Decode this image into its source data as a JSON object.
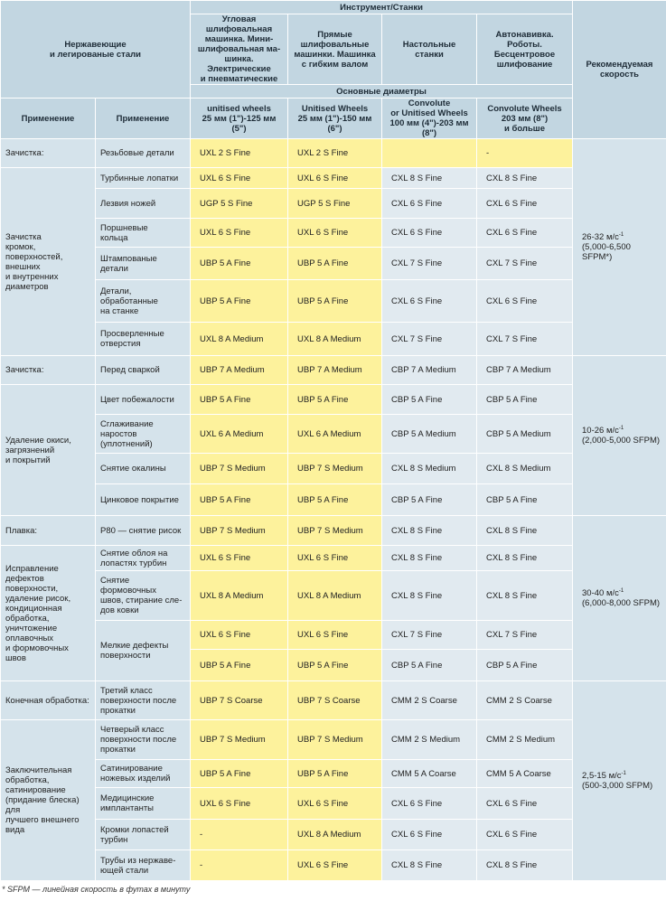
{
  "header": {
    "material": "Нержавеющие\nи легированые стали",
    "tools_title": "Инструмент/Станки",
    "tools": [
      "Угловая шлифовальная\nмашинка. Мини-\nшлифовальная ма-\nшинка. Электрические\nи пневматические",
      "Прямые\nшлифовальные\nмашинки. Машинка\nс гибким валом",
      "Настольные\nстанки",
      "Автонавивка.\nРоботы. Бесцентровое\nшлифование"
    ],
    "diameters_title": "Основные диаметры",
    "diameters": [
      "unitised wheels\n25 мм (1\")-125 мм (5\")",
      "Unitised Wheels\n25 мм (1\")-150 мм (6\")",
      "Convolute\nor Unitised Wheels\n100 мм (4\")-203 мм (8\")",
      "Convolute Wheels\n203 мм (8\")\nи больше"
    ],
    "application_1": "Применение",
    "application_2": "Применение",
    "speed": "Рекомендуемая\nскорость"
  },
  "speed_groups": [
    {
      "speed": {
        "value": "26-32 м/с",
        "sup": "-1",
        "sfpm": "(5,000-6,500 SFPM*)"
      },
      "sections": [
        {
          "application": "Зачистка:",
          "items": [
            {
              "detail": "Резьбовые детали",
              "rows": [
                [
                  "UXL 2 S Fine",
                  "UXL 2 S Fine",
                  null,
                  "-"
                ]
              ]
            }
          ]
        },
        {
          "application": "Зачистка\nкромок,\nповерхностей,\nвнешних\nи внутренних\nдиаметров",
          "items": [
            {
              "detail": "Турбинные лопатки",
              "rows": [
                [
                  "UXL 6 S Fine",
                  "UXL 6 S Fine",
                  "CXL 8 S Fine",
                  "CXL 8 S Fine"
                ]
              ]
            },
            {
              "detail": "Лезвия ножей",
              "rows": [
                [
                  "UGP 5 S Fine",
                  "UGP 5 S Fine",
                  "CXL 6 S Fine",
                  "CXL 6 S Fine"
                ]
              ]
            },
            {
              "detail": "Поршневые\nкольца",
              "rows": [
                [
                  "UXL 6 S Fine",
                  "UXL 6 S Fine",
                  "CXL 6 S Fine",
                  "CXL 6 S Fine"
                ]
              ]
            },
            {
              "detail": "Штампованые\nдетали",
              "rows": [
                [
                  "UBP 5 A Fine",
                  "UBP 5 A Fine",
                  "CXL 7 S Fine",
                  "CXL 7 S Fine"
                ]
              ]
            },
            {
              "detail": "Детали,\nобработанные\nна станке",
              "rows": [
                [
                  "UBP 5 A Fine",
                  "UBP 5 A Fine",
                  "CXL 6 S Fine",
                  "CXL 6 S Fine"
                ]
              ]
            },
            {
              "detail": "Просверленные\nотверстия",
              "rows": [
                [
                  "UXL 8 A Medium",
                  "UXL 8 A Medium",
                  "CXL 7 S Fine",
                  "CXL 7 S Fine"
                ]
              ]
            }
          ]
        }
      ]
    },
    {
      "speed": {
        "value": "10-26 м/с",
        "sup": "-1",
        "sfpm": "(2,000-5,000 SFPM)"
      },
      "sections": [
        {
          "application": "Зачистка:",
          "items": [
            {
              "detail": "Перед сваркой",
              "rows": [
                [
                  "UBP 7 A Medium",
                  "UBP 7 A Medium",
                  "CBP 7 A Medium",
                  "CBP 7 A Medium"
                ]
              ]
            }
          ]
        },
        {
          "application": "Удаление окиси,\nзагрязнений\nи покрытий",
          "items": [
            {
              "detail": "Цвет побежалости",
              "rows": [
                [
                  "UBP 5 A Fine",
                  "UBP 5 A Fine",
                  "CBP 5 A Fine",
                  "CBP 5 A Fine"
                ]
              ]
            },
            {
              "detail": "Сглаживание\nнаростов\n(уплотнений)",
              "rows": [
                [
                  "UXL 6 A Medium",
                  "UXL 6 A Medium",
                  "CBP 5 A Medium",
                  "CBP 5 A Medium"
                ]
              ]
            },
            {
              "detail": "Снятие окалины",
              "rows": [
                [
                  "UBP 7 S Medium",
                  "UBP 7 S Medium",
                  "CXL 8 S Medium",
                  "CXL 8 S Medium"
                ]
              ]
            },
            {
              "detail": "Цинковое покрытие",
              "rows": [
                [
                  "UBP 5 A Fine",
                  "UBP 5 A Fine",
                  "CBP 5 A Fine",
                  "CBP 5 A Fine"
                ]
              ]
            }
          ]
        }
      ]
    },
    {
      "speed": {
        "value": "30-40 м/с",
        "sup": "-1",
        "sfpm": "(6,000-8,000 SFPM)"
      },
      "sections": [
        {
          "application": "Плавка:",
          "items": [
            {
              "detail": "P80 — снятие рисок",
              "rows": [
                [
                  "UBP 7 S Medium",
                  "UBP 7 S Medium",
                  "CXL 8 S Fine",
                  "CXL 8 S Fine"
                ]
              ]
            }
          ]
        },
        {
          "application": "Исправление\nдефектов\nповерхности,\nудаление рисок,\nкондиционная\nобработка,\nуничтожение\nоплавочных\nи формовочных\nшвов",
          "items": [
            {
              "detail": "Снятие облоя на\nлопастях турбин",
              "rows": [
                [
                  "UXL 6 S Fine",
                  "UXL 6 S Fine",
                  "CXL 8 S Fine",
                  "CXL 8 S Fine"
                ]
              ]
            },
            {
              "detail": "Снятие формовочных\nшвов, стирание сле-\nдов ковки",
              "rows": [
                [
                  "UXL 8 A Medium",
                  "UXL 8 A Medium",
                  "CXL 8 S Fine",
                  "CXL 8 S Fine"
                ]
              ]
            },
            {
              "detail": "Мелкие дефекты\nповерхности",
              "rows": [
                [
                  "UXL 6 S Fine",
                  "UXL 6 S Fine",
                  "CXL 7 S Fine",
                  "CXL 7 S Fine"
                ],
                [
                  "UBP 5 A Fine",
                  "UBP 5 A Fine",
                  "CBP 5 A Fine",
                  "CBP 5 A Fine"
                ]
              ]
            }
          ]
        }
      ]
    },
    {
      "speed": {
        "value": "2,5-15 м/с",
        "sup": "-1",
        "sfpm": "(500-3,000 SFPM)"
      },
      "sections": [
        {
          "application": "Конечная обработка:",
          "items": [
            {
              "detail": "Третий класс\nповерхности после\nпрокатки",
              "rows": [
                [
                  "UBP 7 S Coarse",
                  "UBP 7 S Coarse",
                  "CMM 2 S Coarse",
                  "CMM 2 S Coarse"
                ]
              ]
            }
          ]
        },
        {
          "application": "Заключительная\nобработка,\nсатинирование\n(придание блеска) для\nлучшего внешнего\nвида",
          "items": [
            {
              "detail": "Четверый класс\nповерхности после\nпрокатки",
              "rows": [
                [
                  "UBP 7 S Medium",
                  "UBP 7 S Medium",
                  "CMM 2 S Medium",
                  "CMM 2 S Medium"
                ]
              ]
            },
            {
              "detail": "Сатинирование\nножевых изделий",
              "rows": [
                [
                  "UBP 5 A Fine",
                  "UBP 5 A Fine",
                  "CMM 5 A Coarse",
                  "CMM 5 A Coarse"
                ]
              ]
            },
            {
              "detail": "Медицинские\nимплантанты",
              "rows": [
                [
                  "UXL 6 S Fine",
                  "UXL 6 S Fine",
                  "CXL 6 S Fine",
                  "CXL 6 S Fine"
                ]
              ]
            },
            {
              "detail": "Кромки лопастей\nтурбин",
              "rows": [
                [
                  "-",
                  "UXL 8 A Medium",
                  "CXL 6 S Fine",
                  "CXL 6 S Fine"
                ]
              ]
            },
            {
              "detail": "Трубы из нержаве-\nющей стали",
              "rows": [
                [
                  "-",
                  "UXL 6 S Fine",
                  "CXL 8 S Fine",
                  "CXL 8 S Fine"
                ]
              ]
            }
          ]
        }
      ]
    }
  ],
  "footnote": "* SFPM — линейная скорость в футах в минуту"
}
